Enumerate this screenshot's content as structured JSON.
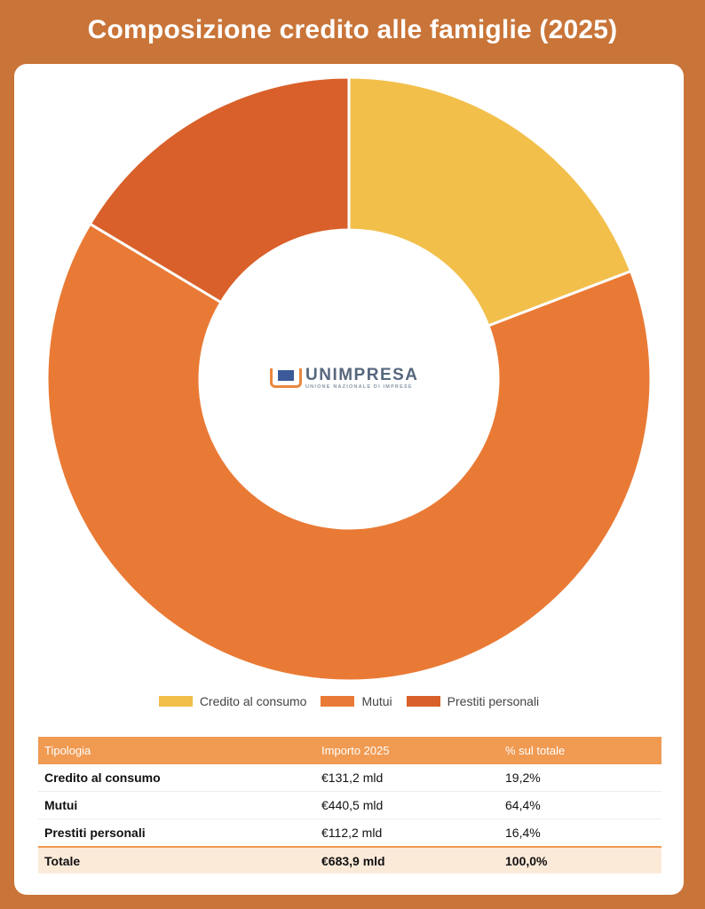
{
  "title": "Composizione credito alle famiglie (2025)",
  "colors": {
    "background": "#C97438",
    "credito_al_consumo": "#F2BF4B",
    "mutui": "#E97A35",
    "prestiti_personali": "#D9602A",
    "table_header": "#F09A52",
    "total_row": "#FCEAD9"
  },
  "logo": {
    "name": "UNIMPRESA",
    "subtitle": "UNIONE NAZIONALE DI IMPRESE"
  },
  "chart_data": {
    "type": "pie",
    "donut": true,
    "title": "Composizione credito alle famiglie (2025)",
    "categories": [
      "Credito al consumo",
      "Mutui",
      "Prestiti personali"
    ],
    "values": [
      131.2,
      440.5,
      112.2
    ],
    "unit": "mld €",
    "percentages": [
      19.2,
      64.4,
      16.4
    ],
    "legend_position": "bottom"
  },
  "table": {
    "headers": [
      "Tipologia",
      "Importo 2025",
      "% sul totale"
    ],
    "rows": [
      [
        "Credito al consumo",
        "€131,2 mld",
        "19,2%"
      ],
      [
        "Mutui",
        "€440,5 mld",
        "64,4%"
      ],
      [
        "Prestiti personali",
        "€112,2 mld",
        "16,4%"
      ]
    ],
    "total": [
      "Totale",
      "€683,9 mld",
      "100,0%"
    ]
  }
}
